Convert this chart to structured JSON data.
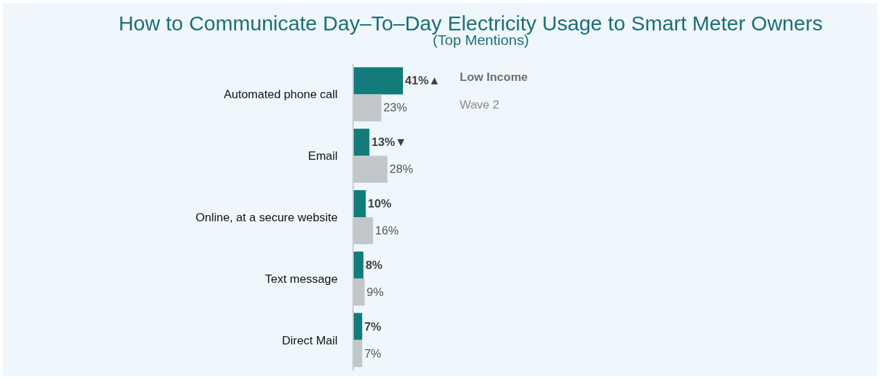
{
  "chart_data": {
    "type": "bar",
    "orientation": "horizontal",
    "title": "How to Communicate Day–To–Day Electricity Usage to Smart Meter Owners",
    "subtitle": "(Top Mentions)",
    "categories": [
      "Automated phone call",
      "Email",
      "Online, at a secure website",
      "Text message",
      "Direct Mail"
    ],
    "series": [
      {
        "name": "Low Income",
        "color": "#137b7a",
        "values": [
          41,
          13,
          10,
          8,
          7
        ],
        "value_labels": [
          "41%▲",
          "13%▼",
          "10%",
          "8%",
          "7%"
        ]
      },
      {
        "name": "Wave 2",
        "color": "#c1c7ca",
        "values": [
          23,
          28,
          16,
          9,
          7
        ],
        "value_labels": [
          "23%",
          "28%",
          "16%",
          "9%",
          "7%"
        ]
      }
    ]
  }
}
